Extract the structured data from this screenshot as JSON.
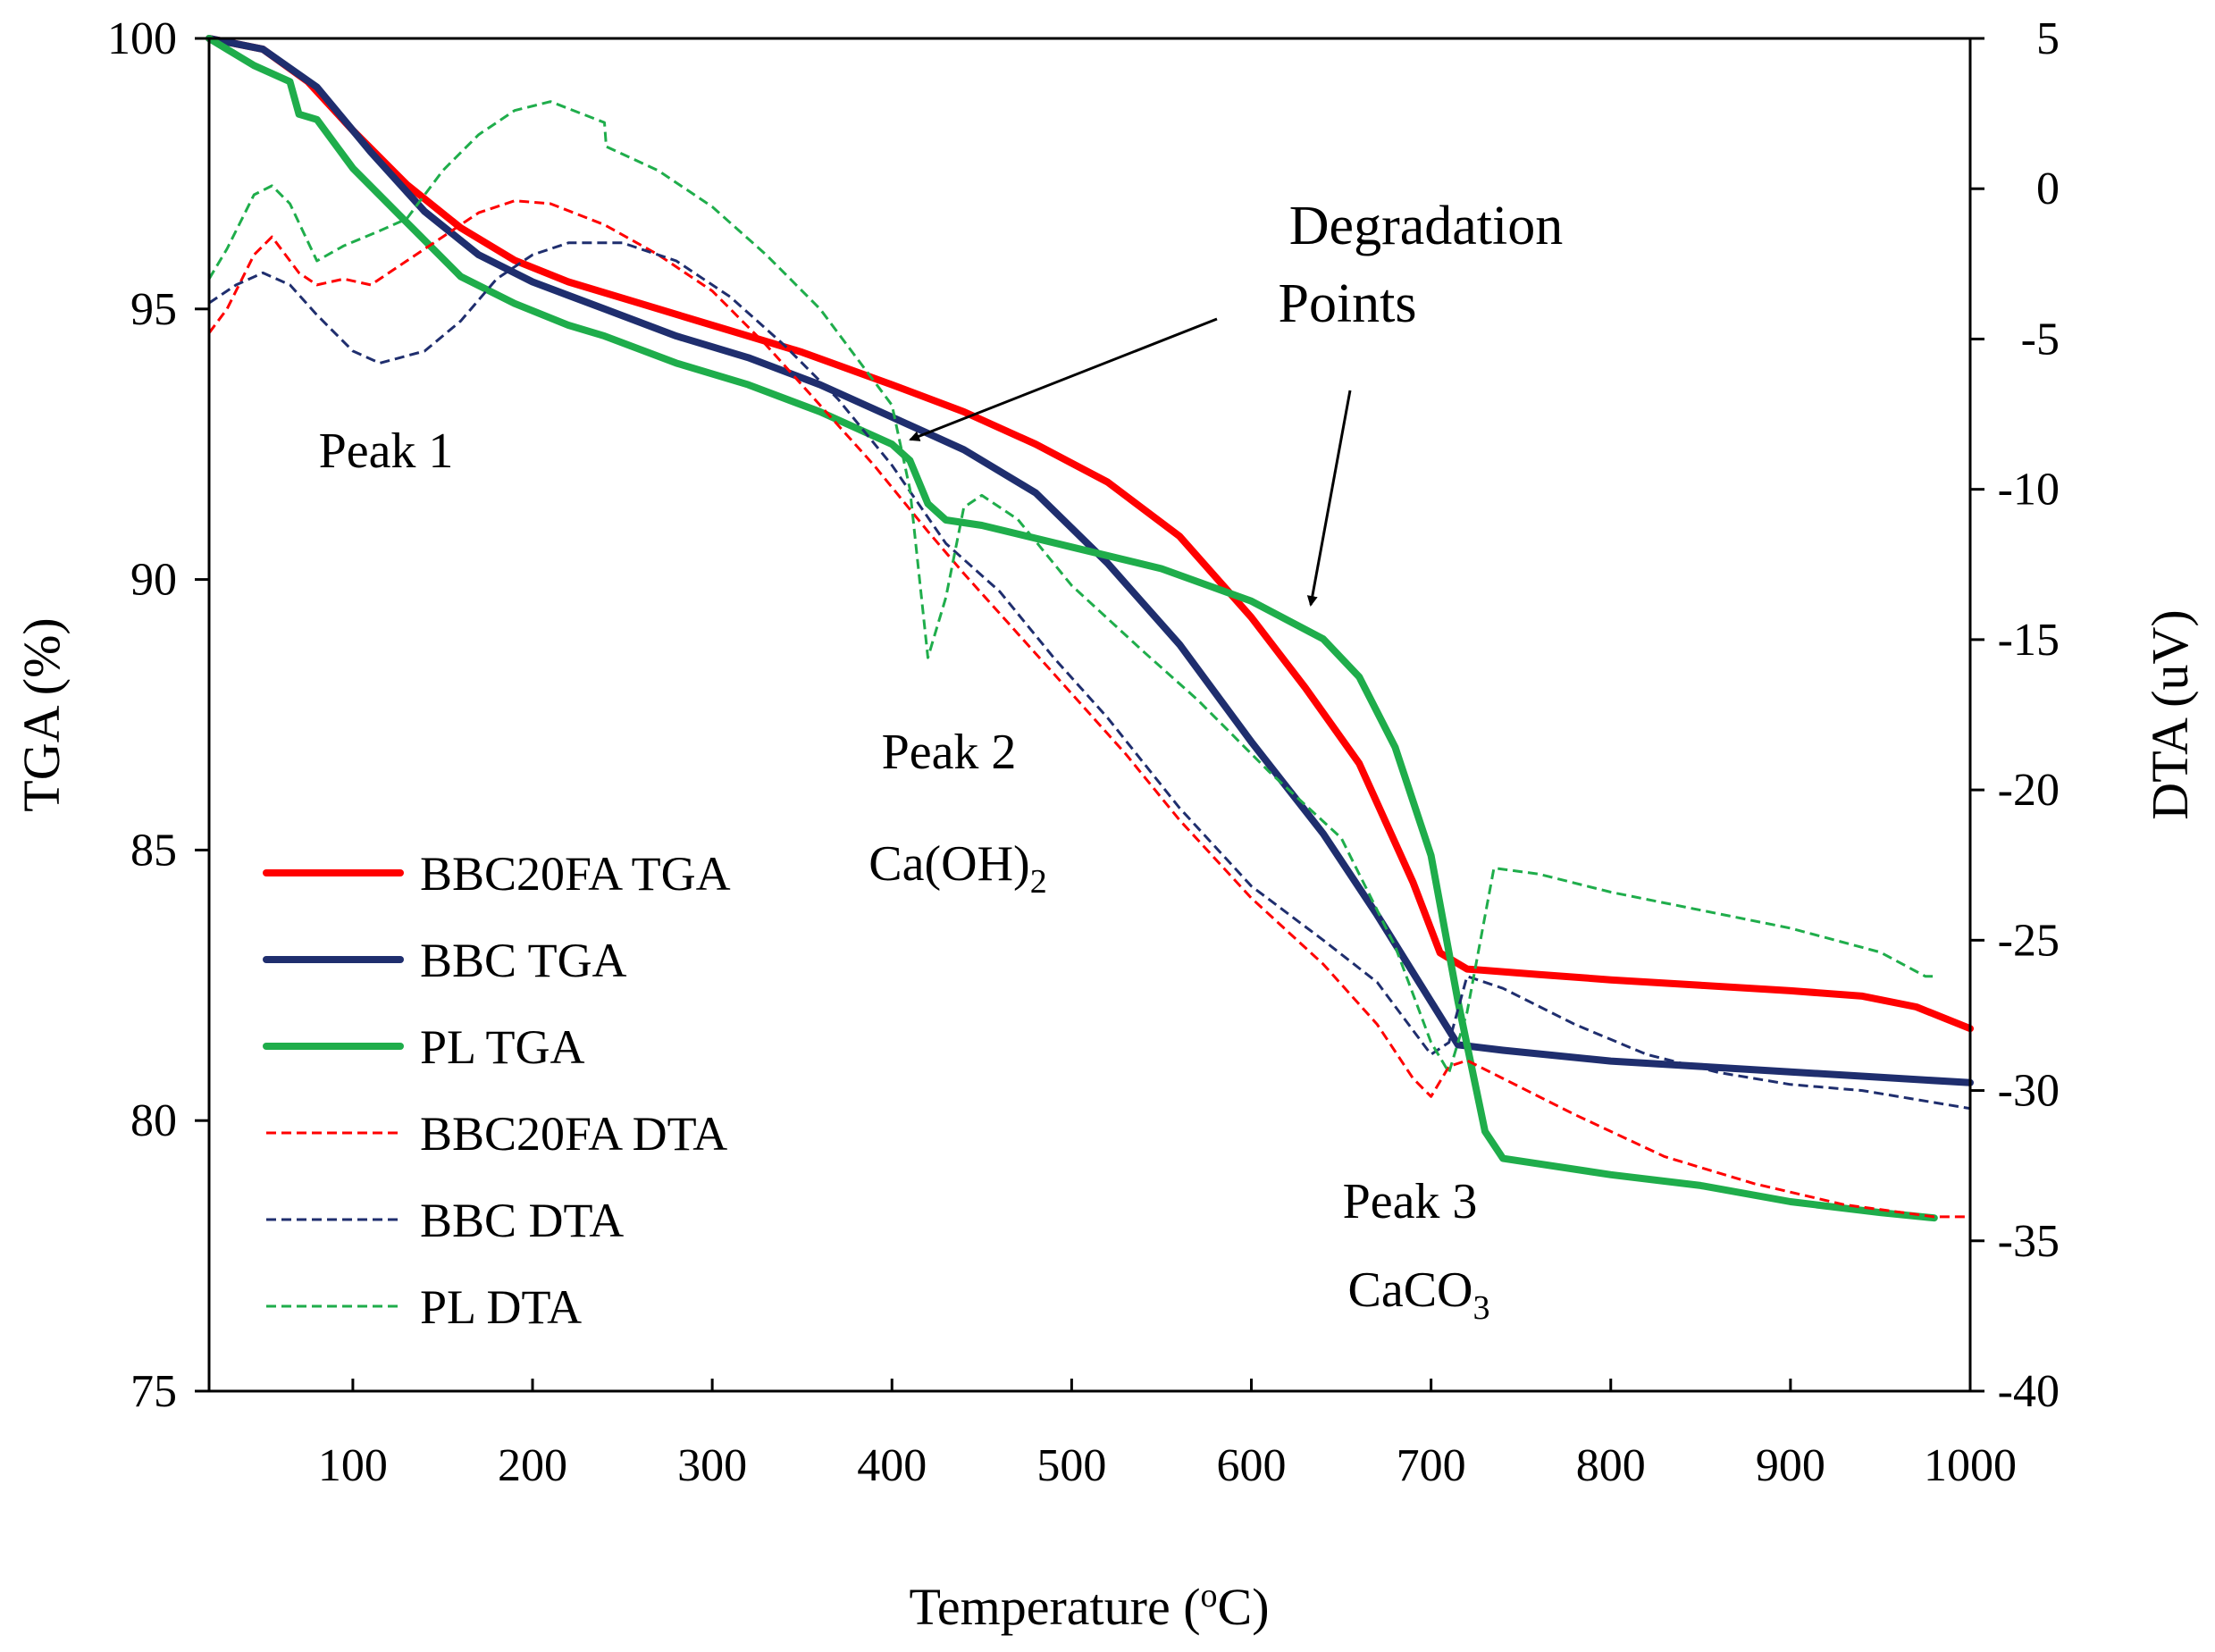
{
  "chart_data": {
    "type": "line",
    "title": "",
    "xlabel": {
      "main": "Temperature (",
      "sup": "o",
      "tail": "C)"
    },
    "ylabel_left": "TGA (%)",
    "ylabel_right": "DTA (uV)",
    "xlim": [
      20,
      1000
    ],
    "ylim_left": [
      75,
      100
    ],
    "ylim_right": [
      -40,
      5
    ],
    "x_ticks": [
      100,
      200,
      300,
      400,
      500,
      600,
      700,
      800,
      900,
      1000
    ],
    "y_left_ticks": [
      75,
      80,
      85,
      90,
      95,
      100
    ],
    "y_right_ticks": [
      -40,
      -35,
      -30,
      -25,
      -20,
      -15,
      -10,
      -5,
      0,
      5
    ],
    "grid": false,
    "legend_position": "bottom-left",
    "series": [
      {
        "name": "BBC20FA TGA",
        "axis": "left",
        "color": "#ff0000",
        "style": "solid",
        "points": [
          [
            20,
            100
          ],
          [
            50,
            99.8
          ],
          [
            75,
            99.2
          ],
          [
            100,
            98.3
          ],
          [
            130,
            97.3
          ],
          [
            160,
            96.5
          ],
          [
            190,
            95.9
          ],
          [
            220,
            95.5
          ],
          [
            260,
            95.1
          ],
          [
            300,
            94.7
          ],
          [
            350,
            94.2
          ],
          [
            400,
            93.6
          ],
          [
            440,
            93.1
          ],
          [
            480,
            92.5
          ],
          [
            520,
            91.8
          ],
          [
            560,
            90.8
          ],
          [
            600,
            89.3
          ],
          [
            630,
            88.0
          ],
          [
            660,
            86.6
          ],
          [
            690,
            84.4
          ],
          [
            705,
            83.1
          ],
          [
            720,
            82.8
          ],
          [
            760,
            82.7
          ],
          [
            800,
            82.6
          ],
          [
            850,
            82.5
          ],
          [
            900,
            82.4
          ],
          [
            940,
            82.3
          ],
          [
            970,
            82.1
          ],
          [
            1000,
            81.7
          ]
        ]
      },
      {
        "name": "BBC TGA",
        "axis": "left",
        "color": "#1f2e6e",
        "style": "solid",
        "points": [
          [
            20,
            100
          ],
          [
            50,
            99.8
          ],
          [
            80,
            99.1
          ],
          [
            110,
            97.9
          ],
          [
            140,
            96.8
          ],
          [
            170,
            96.0
          ],
          [
            200,
            95.5
          ],
          [
            240,
            95.0
          ],
          [
            280,
            94.5
          ],
          [
            320,
            94.1
          ],
          [
            360,
            93.6
          ],
          [
            400,
            93.0
          ],
          [
            440,
            92.4
          ],
          [
            480,
            91.6
          ],
          [
            520,
            90.3
          ],
          [
            560,
            88.8
          ],
          [
            600,
            87.0
          ],
          [
            640,
            85.3
          ],
          [
            670,
            83.8
          ],
          [
            700,
            82.2
          ],
          [
            715,
            81.4
          ],
          [
            740,
            81.3
          ],
          [
            800,
            81.1
          ],
          [
            850,
            81.0
          ],
          [
            900,
            80.9
          ],
          [
            950,
            80.8
          ],
          [
            1000,
            80.7
          ]
        ]
      },
      {
        "name": "PL TGA",
        "axis": "left",
        "color": "#1fad4b",
        "style": "solid",
        "points": [
          [
            20,
            100
          ],
          [
            45,
            99.5
          ],
          [
            65,
            99.2
          ],
          [
            70,
            98.6
          ],
          [
            80,
            98.5
          ],
          [
            100,
            97.6
          ],
          [
            130,
            96.6
          ],
          [
            160,
            95.6
          ],
          [
            190,
            95.1
          ],
          [
            220,
            94.7
          ],
          [
            240,
            94.5
          ],
          [
            280,
            94.0
          ],
          [
            320,
            93.6
          ],
          [
            360,
            93.1
          ],
          [
            400,
            92.5
          ],
          [
            410,
            92.2
          ],
          [
            420,
            91.4
          ],
          [
            430,
            91.1
          ],
          [
            450,
            91.0
          ],
          [
            500,
            90.6
          ],
          [
            550,
            90.2
          ],
          [
            600,
            89.6
          ],
          [
            640,
            88.9
          ],
          [
            660,
            88.2
          ],
          [
            680,
            86.9
          ],
          [
            700,
            84.9
          ],
          [
            715,
            82.2
          ],
          [
            730,
            79.8
          ],
          [
            740,
            79.3
          ],
          [
            800,
            79.0
          ],
          [
            850,
            78.8
          ],
          [
            900,
            78.5
          ],
          [
            950,
            78.3
          ],
          [
            980,
            78.2
          ]
        ]
      },
      {
        "name": "BBC20FA DTA",
        "axis": "right",
        "color": "#ff0000",
        "style": "dashed",
        "points": [
          [
            20,
            -4.8
          ],
          [
            30,
            -4.0
          ],
          [
            45,
            -2.2
          ],
          [
            55,
            -1.6
          ],
          [
            70,
            -2.8
          ],
          [
            80,
            -3.2
          ],
          [
            95,
            -3.0
          ],
          [
            110,
            -3.2
          ],
          [
            130,
            -2.4
          ],
          [
            150,
            -1.6
          ],
          [
            170,
            -0.8
          ],
          [
            190,
            -0.4
          ],
          [
            210,
            -0.5
          ],
          [
            240,
            -1.2
          ],
          [
            270,
            -2.2
          ],
          [
            300,
            -3.4
          ],
          [
            330,
            -5.2
          ],
          [
            360,
            -7.2
          ],
          [
            390,
            -9.2
          ],
          [
            420,
            -11.4
          ],
          [
            440,
            -12.8
          ],
          [
            470,
            -14.8
          ],
          [
            500,
            -16.8
          ],
          [
            530,
            -18.8
          ],
          [
            560,
            -21.0
          ],
          [
            600,
            -23.6
          ],
          [
            640,
            -25.8
          ],
          [
            670,
            -27.8
          ],
          [
            690,
            -29.6
          ],
          [
            700,
            -30.2
          ],
          [
            710,
            -29.2
          ],
          [
            720,
            -29.0
          ],
          [
            740,
            -29.6
          ],
          [
            780,
            -30.8
          ],
          [
            830,
            -32.2
          ],
          [
            880,
            -33.1
          ],
          [
            930,
            -33.8
          ],
          [
            980,
            -34.2
          ],
          [
            1000,
            -34.2
          ]
        ]
      },
      {
        "name": "BBC DTA",
        "axis": "right",
        "color": "#1f2e6e",
        "style": "dashed",
        "points": [
          [
            20,
            -3.8
          ],
          [
            35,
            -3.2
          ],
          [
            50,
            -2.8
          ],
          [
            65,
            -3.2
          ],
          [
            80,
            -4.2
          ],
          [
            100,
            -5.4
          ],
          [
            115,
            -5.8
          ],
          [
            140,
            -5.4
          ],
          [
            160,
            -4.4
          ],
          [
            180,
            -3.0
          ],
          [
            200,
            -2.2
          ],
          [
            220,
            -1.8
          ],
          [
            250,
            -1.8
          ],
          [
            280,
            -2.4
          ],
          [
            310,
            -3.6
          ],
          [
            340,
            -5.2
          ],
          [
            370,
            -7.0
          ],
          [
            400,
            -9.2
          ],
          [
            430,
            -11.8
          ],
          [
            460,
            -13.4
          ],
          [
            490,
            -15.6
          ],
          [
            520,
            -17.6
          ],
          [
            560,
            -20.6
          ],
          [
            600,
            -23.2
          ],
          [
            640,
            -25.0
          ],
          [
            670,
            -26.4
          ],
          [
            690,
            -28.0
          ],
          [
            700,
            -28.8
          ],
          [
            710,
            -28.4
          ],
          [
            720,
            -26.2
          ],
          [
            740,
            -26.6
          ],
          [
            780,
            -27.8
          ],
          [
            820,
            -28.8
          ],
          [
            860,
            -29.4
          ],
          [
            900,
            -29.8
          ],
          [
            940,
            -30.0
          ],
          [
            980,
            -30.4
          ],
          [
            1000,
            -30.6
          ]
        ]
      },
      {
        "name": "PL DTA",
        "axis": "right",
        "color": "#1fad4b",
        "style": "dashed",
        "points": [
          [
            20,
            -3.0
          ],
          [
            30,
            -2.0
          ],
          [
            45,
            -0.2
          ],
          [
            55,
            0.1
          ],
          [
            65,
            -0.5
          ],
          [
            80,
            -2.4
          ],
          [
            95,
            -1.9
          ],
          [
            115,
            -1.4
          ],
          [
            130,
            -1.0
          ],
          [
            150,
            0.6
          ],
          [
            170,
            1.8
          ],
          [
            190,
            2.6
          ],
          [
            210,
            2.9
          ],
          [
            240,
            2.2
          ],
          [
            241,
            1.4
          ],
          [
            270,
            0.6
          ],
          [
            300,
            -0.6
          ],
          [
            330,
            -2.2
          ],
          [
            360,
            -4.0
          ],
          [
            385,
            -6.0
          ],
          [
            400,
            -7.2
          ],
          [
            410,
            -10.0
          ],
          [
            420,
            -15.6
          ],
          [
            430,
            -13.6
          ],
          [
            440,
            -10.6
          ],
          [
            450,
            -10.2
          ],
          [
            470,
            -11.0
          ],
          [
            500,
            -13.2
          ],
          [
            540,
            -15.4
          ],
          [
            570,
            -17.0
          ],
          [
            610,
            -19.4
          ],
          [
            650,
            -21.6
          ],
          [
            680,
            -25.2
          ],
          [
            700,
            -28.4
          ],
          [
            710,
            -29.4
          ],
          [
            720,
            -27.4
          ],
          [
            735,
            -22.6
          ],
          [
            760,
            -22.8
          ],
          [
            800,
            -23.4
          ],
          [
            850,
            -24.0
          ],
          [
            900,
            -24.6
          ],
          [
            950,
            -25.4
          ],
          [
            975,
            -26.2
          ],
          [
            980,
            -26.2
          ]
        ]
      }
    ],
    "annotations": {
      "peak1": "Peak 1",
      "peak2": "Peak 2",
      "peak2_species": {
        "main": "Ca(OH)",
        "sub": "2"
      },
      "peak3": "Peak 3",
      "peak3_species": {
        "main": "CaCO",
        "sub": "3"
      },
      "degradation_line1": "Degradation",
      "degradation_line2": "Points"
    }
  }
}
